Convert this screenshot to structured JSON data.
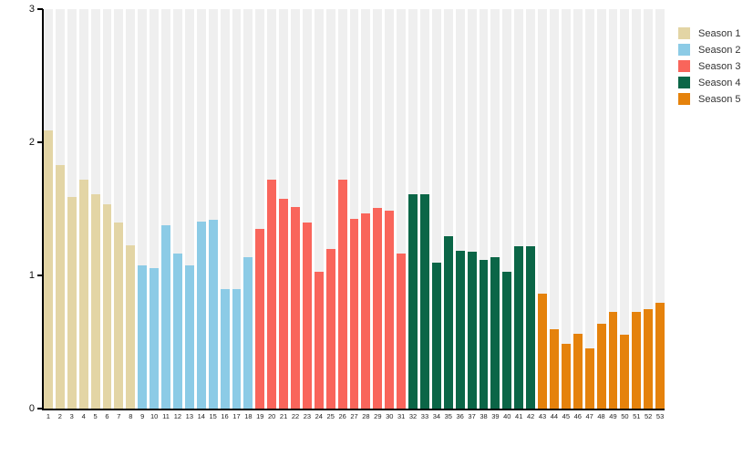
{
  "chart_data": {
    "type": "bar",
    "title": "",
    "xlabel": "",
    "ylabel": "",
    "ylim": [
      0,
      3
    ],
    "yticks": [
      0,
      1,
      2,
      3
    ],
    "x_tick_labels": [
      "1",
      "2",
      "3",
      "4",
      "5",
      "6",
      "7",
      "8",
      "9",
      "10",
      "11",
      "12",
      "13",
      "14",
      "15",
      "16",
      "17",
      "18",
      "19",
      "20",
      "21",
      "22",
      "23",
      "24",
      "25",
      "26",
      "27",
      "28",
      "29",
      "30",
      "31",
      "32",
      "33",
      "34",
      "35",
      "36",
      "37",
      "38",
      "39",
      "40",
      "41",
      "42",
      "43",
      "44",
      "45",
      "46",
      "47",
      "48",
      "49",
      "50",
      "51",
      "52",
      "53"
    ],
    "series": [
      {
        "name": "Season 1",
        "color": "#E3D5A5",
        "x": [
          1,
          2,
          3,
          4,
          5,
          6,
          7,
          8
        ],
        "values": [
          2.09,
          1.83,
          1.59,
          1.72,
          1.61,
          1.54,
          1.4,
          1.23
        ]
      },
      {
        "name": "Season 2",
        "color": "#8CCBE6",
        "x": [
          9,
          10,
          11,
          12,
          13,
          14,
          15,
          16,
          17,
          18
        ],
        "values": [
          1.08,
          1.06,
          1.38,
          1.17,
          1.08,
          1.41,
          1.42,
          0.9,
          0.9,
          1.14
        ]
      },
      {
        "name": "Season 3",
        "color": "#F9655B",
        "x": [
          19,
          20,
          21,
          22,
          23,
          24,
          25,
          26,
          27,
          28,
          29,
          30,
          31
        ],
        "values": [
          1.35,
          1.72,
          1.58,
          1.52,
          1.4,
          1.03,
          1.2,
          1.72,
          1.43,
          1.47,
          1.51,
          1.49,
          1.17
        ]
      },
      {
        "name": "Season 4",
        "color": "#0B6647",
        "x": [
          32,
          33,
          34,
          35,
          36,
          37,
          38,
          39,
          40,
          41,
          42
        ],
        "values": [
          1.61,
          1.61,
          1.1,
          1.3,
          1.19,
          1.18,
          1.12,
          1.14,
          1.03,
          1.22,
          1.22
        ]
      },
      {
        "name": "Season 5",
        "color": "#E5820C",
        "x": [
          43,
          44,
          45,
          46,
          47,
          48,
          49,
          50,
          51,
          52,
          53
        ],
        "values": [
          0.87,
          0.6,
          0.49,
          0.57,
          0.46,
          0.64,
          0.73,
          0.56,
          0.73,
          0.75,
          0.8
        ]
      }
    ],
    "legend": {
      "position": "top-right",
      "entries": [
        "Season 1",
        "Season 2",
        "Season 3",
        "Season 4",
        "Season 5"
      ]
    },
    "grid": {
      "style": "vertical-column-stripes",
      "stripe_color": "#EFEFEF"
    },
    "colors": {
      "axis": "#000000",
      "y_label_text": "#111111",
      "x_label_text": "#222222",
      "legend_text": "#333333",
      "background": "#FFFFFF"
    }
  }
}
